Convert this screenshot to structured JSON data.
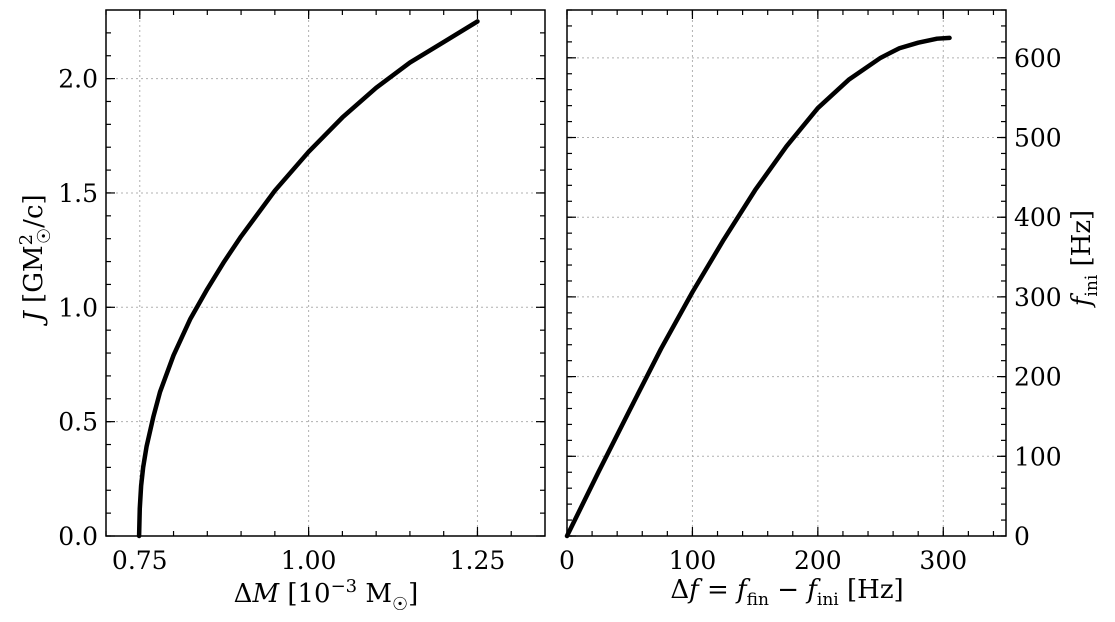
{
  "chart_data": [
    {
      "type": "line",
      "xlabel": "ΔM [10⁻³ M☉]",
      "ylabel": "J [GM☉²/c]",
      "xlim": [
        0.7,
        1.35
      ],
      "ylim": [
        0.0,
        2.3
      ],
      "xticks": [
        0.75,
        1.0,
        1.25
      ],
      "xtick_labels": [
        "0.75",
        "1.00",
        "1.25"
      ],
      "yticks": [
        0.0,
        0.5,
        1.0,
        1.5,
        2.0
      ],
      "ytick_labels": [
        "0.0",
        "0.5",
        "1.0",
        "1.5",
        "2.0"
      ],
      "grid": true,
      "series": [
        {
          "x": [
            0.749,
            0.75,
            0.752,
            0.755,
            0.76,
            0.77,
            0.78,
            0.8,
            0.825,
            0.85,
            0.875,
            0.9,
            0.95,
            1.0,
            1.05,
            1.1,
            1.15,
            1.2,
            1.25
          ],
          "y": [
            0.0,
            0.12,
            0.22,
            0.3,
            0.39,
            0.52,
            0.63,
            0.79,
            0.95,
            1.08,
            1.2,
            1.31,
            1.51,
            1.68,
            1.83,
            1.96,
            2.07,
            2.16,
            2.25
          ]
        }
      ]
    },
    {
      "type": "line",
      "xlabel": "Δf = f_fin − f_ini [Hz]",
      "ylabel": "f_ini [Hz]",
      "xlim": [
        0,
        350
      ],
      "ylim": [
        0,
        660
      ],
      "xticks": [
        0,
        100,
        200,
        300
      ],
      "xtick_labels": [
        "0",
        "100",
        "200",
        "300"
      ],
      "yticks": [
        0,
        100,
        200,
        300,
        400,
        500,
        600
      ],
      "ytick_labels": [
        "0",
        "100",
        "200",
        "300",
        "400",
        "500",
        "600"
      ],
      "grid": true,
      "series": [
        {
          "x": [
            0,
            25,
            50,
            75,
            100,
            125,
            150,
            175,
            200,
            225,
            250,
            265,
            280,
            295,
            305
          ],
          "y": [
            0,
            80,
            158,
            235,
            306,
            372,
            434,
            489,
            537,
            573,
            600,
            612,
            619,
            624,
            625
          ]
        }
      ]
    }
  ]
}
